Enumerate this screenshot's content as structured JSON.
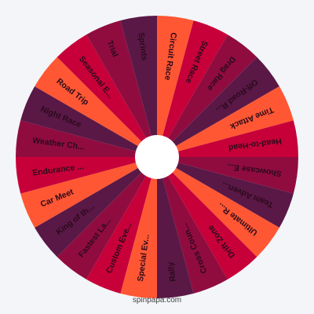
{
  "wheel": {
    "colors": {
      "dark_purple": "#5a1846",
      "crimson": "#c70039",
      "orange": "#ff5733",
      "maroon": "#900c3f",
      "label_dark": "#2b0a1c",
      "hub": "#ffffff"
    },
    "segments": [
      {
        "label": "Circuit Race",
        "color": "#ff5733"
      },
      {
        "label": "Street Race",
        "color": "#c70039"
      },
      {
        "label": "Drag Race",
        "color": "#900c3f"
      },
      {
        "label": "Off-Road R...",
        "color": "#5a1846"
      },
      {
        "label": "Time Attack",
        "color": "#ff5733"
      },
      {
        "label": "Head-to-Head",
        "color": "#c70039"
      },
      {
        "label": "Showcase E...",
        "color": "#900c3f"
      },
      {
        "label": "Team Adven...",
        "color": "#5a1846"
      },
      {
        "label": "Ultimate R...",
        "color": "#ff5733"
      },
      {
        "label": "Drift Zone",
        "color": "#c70039"
      },
      {
        "label": "Cross Coun...",
        "color": "#900c3f"
      },
      {
        "label": "Rally",
        "color": "#5a1846"
      },
      {
        "label": "Special Ev...",
        "color": "#ff5733"
      },
      {
        "label": "Custom Eve...",
        "color": "#c70039"
      },
      {
        "label": "Fastest La...",
        "color": "#900c3f"
      },
      {
        "label": "King of th...",
        "color": "#5a1846"
      },
      {
        "label": "Car Meet",
        "color": "#ff5733"
      },
      {
        "label": "Endurance ...",
        "color": "#c70039"
      },
      {
        "label": "Weather Ch...",
        "color": "#900c3f"
      },
      {
        "label": "Night Race",
        "color": "#5a1846"
      },
      {
        "label": "Road Trip",
        "color": "#ff5733"
      },
      {
        "label": "Seasonal E...",
        "color": "#c70039"
      },
      {
        "label": "Trial",
        "color": "#900c3f"
      },
      {
        "label": "Sprints",
        "color": "#5a1846"
      }
    ]
  },
  "footer": {
    "site": "spinpapa.com"
  }
}
